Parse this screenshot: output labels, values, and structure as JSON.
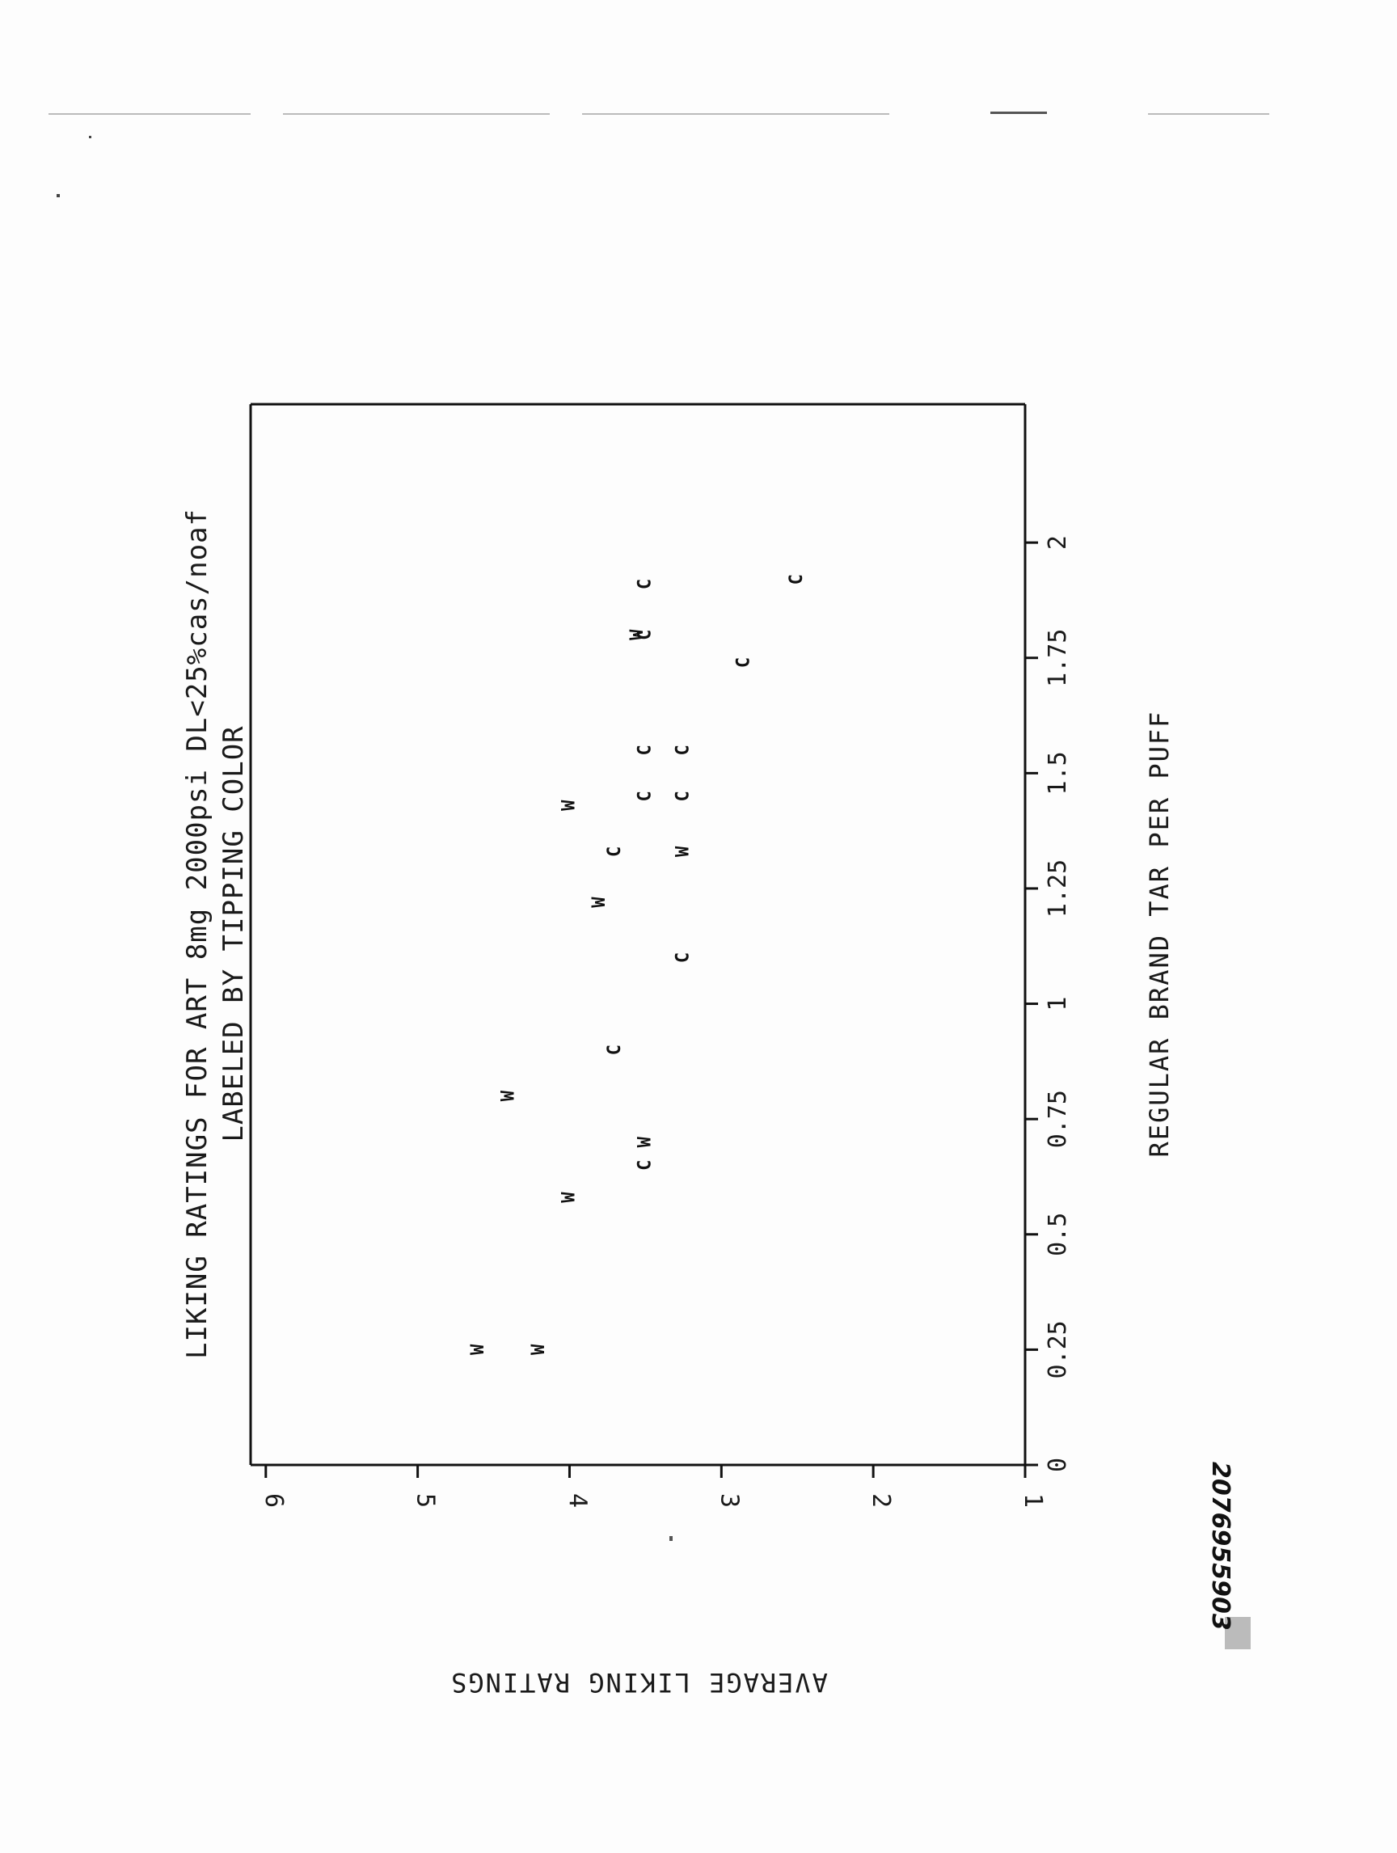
{
  "chart_data": {
    "type": "scatter",
    "title": "LIKING RATINGS FOR ART 8mg 2000psi DL<25%cas/noaf",
    "subtitle": "LABELED BY TIPPING COLOR",
    "xlabel": "REGULAR BRAND TAR PER PUFF",
    "ylabel": "AVERAGE LIKING RATINGS",
    "xlim": [
      0,
      2.3
    ],
    "ylim": [
      1,
      6.1
    ],
    "x_ticks": [
      "0",
      "0.25",
      "0.5",
      "0.75",
      "1",
      "1.25",
      "1.5",
      "1.75",
      "2"
    ],
    "x_tick_values": [
      0,
      0.25,
      0.5,
      0.75,
      1,
      1.25,
      1.5,
      1.75,
      2
    ],
    "y_ticks": [
      "1",
      "2",
      "3",
      "4",
      "5",
      "6"
    ],
    "y_tick_values": [
      1,
      2,
      3,
      4,
      5,
      6
    ],
    "grid": false,
    "legend": "none",
    "orientation": "rotated 90 degrees on page",
    "series": [
      {
        "name": "C",
        "values": [
          {
            "x": 0.65,
            "y": 3.5
          },
          {
            "x": 0.9,
            "y": 3.7
          },
          {
            "x": 1.1,
            "y": 3.25
          },
          {
            "x": 1.33,
            "y": 3.7
          },
          {
            "x": 1.45,
            "y": 3.5
          },
          {
            "x": 1.45,
            "y": 3.25
          },
          {
            "x": 1.55,
            "y": 3.5
          },
          {
            "x": 1.55,
            "y": 3.25
          },
          {
            "x": 1.74,
            "y": 2.85
          },
          {
            "x": 1.8,
            "y": 3.5
          },
          {
            "x": 1.91,
            "y": 3.5
          },
          {
            "x": 1.92,
            "y": 2.5
          }
        ]
      },
      {
        "name": "W",
        "values": [
          {
            "x": 0.25,
            "y": 4.6
          },
          {
            "x": 0.25,
            "y": 4.2
          },
          {
            "x": 0.58,
            "y": 4.0
          },
          {
            "x": 0.8,
            "y": 4.4
          },
          {
            "x": 0.7,
            "y": 3.5
          },
          {
            "x": 1.22,
            "y": 3.8
          },
          {
            "x": 1.33,
            "y": 3.25
          },
          {
            "x": 1.43,
            "y": 4.0
          },
          {
            "x": 1.8,
            "y": 3.55
          }
        ]
      }
    ]
  },
  "document_id": "2076955903"
}
